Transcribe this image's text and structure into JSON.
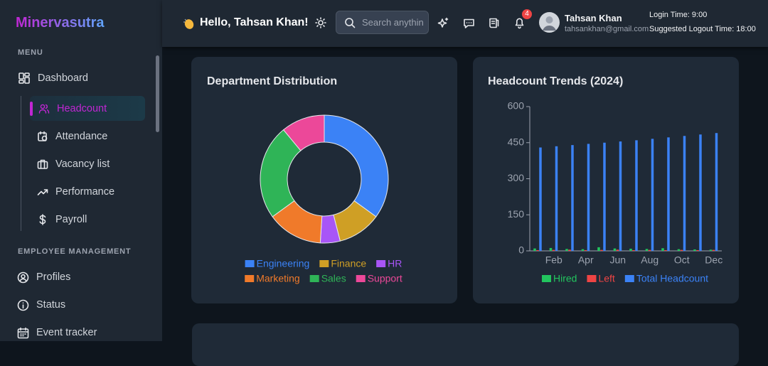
{
  "sidebar": {
    "brand": "Minervasutra",
    "sections": [
      {
        "heading": "MENU",
        "items": [
          "Dashboard",
          "Headcount",
          "Attendance",
          "Vacancy list",
          "Performance",
          "Payroll"
        ]
      },
      {
        "heading": "EMPLOYEE MANAGEMENT",
        "items": [
          "Profiles",
          "Status",
          "Event tracker"
        ]
      }
    ]
  },
  "header": {
    "greeting": "Hello, Tahsan Khan!",
    "search_placeholder": "Search anythin",
    "notification_count": 4,
    "user": {
      "name": "Tahsan Khan",
      "email": "tahsankhan@gmail.com"
    },
    "login_time": "Login Time: 9:00",
    "logout_time": "Suggested Logout Time: 18:00"
  },
  "chart_data": [
    {
      "type": "doughnut",
      "title": "Department Distribution",
      "categories": [
        "Engineering",
        "Finance",
        "HR",
        "Marketing",
        "Sales",
        "Support"
      ],
      "values": [
        35,
        11,
        5,
        14,
        24,
        11
      ],
      "colors": [
        "#3b82f6",
        "#cf9f25",
        "#a855f7",
        "#f07a2a",
        "#2fb457",
        "#ec4899"
      ]
    },
    {
      "type": "bar",
      "title": "Headcount Trends (2024)",
      "categories": [
        null,
        "Feb",
        null,
        "Apr",
        null,
        "Jun",
        null,
        "Aug",
        null,
        "Oct",
        null,
        "Dec"
      ],
      "series": [
        {
          "name": "Hired",
          "color": "#22c55e",
          "values": [
            10,
            12,
            8,
            7,
            15,
            10,
            9,
            8,
            11,
            7,
            6,
            5
          ]
        },
        {
          "name": "Left",
          "color": "#ef4444",
          "values": [
            3,
            4,
            5,
            3,
            4,
            5,
            3,
            4,
            3,
            4,
            3,
            4
          ]
        },
        {
          "name": "Total Headcount",
          "color": "#3b82f6",
          "values": [
            430,
            435,
            440,
            445,
            450,
            455,
            460,
            466,
            472,
            478,
            484,
            490
          ]
        }
      ],
      "ylim": [
        0,
        600
      ],
      "yticks": [
        0,
        150,
        300,
        450,
        600
      ],
      "grid": false
    }
  ]
}
